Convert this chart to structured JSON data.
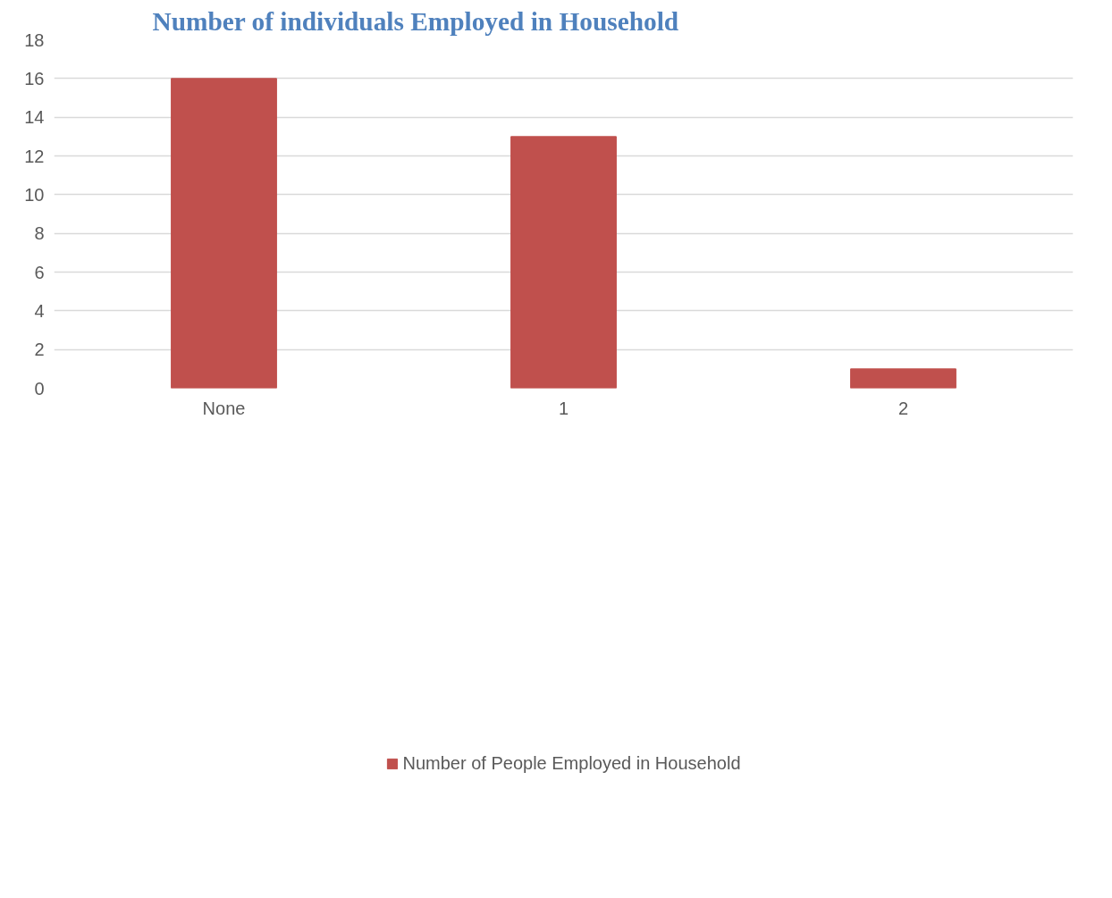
{
  "chart_data": {
    "type": "bar",
    "title": "Number of individuals Employed in Household",
    "categories": [
      "None",
      "1",
      "2"
    ],
    "series": [
      {
        "name": "Number of People Employed in Household",
        "color": "#c0504d",
        "values": [
          16,
          13,
          1
        ]
      }
    ],
    "ylim": [
      0,
      18
    ],
    "yticks": [
      0,
      2,
      4,
      6,
      8,
      10,
      12,
      14,
      16,
      18
    ],
    "grid": "y",
    "legend": "bottom"
  }
}
